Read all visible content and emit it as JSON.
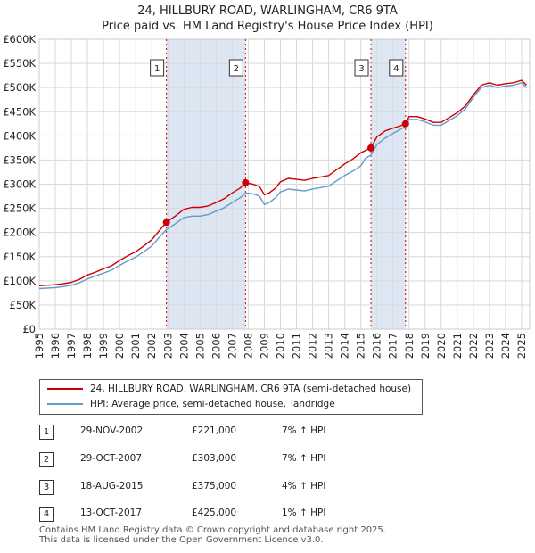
{
  "chart_data": {
    "type": "line",
    "title": "24, HILLBURY ROAD, WARLINGHAM, CR6 9TA",
    "subtitle": "Price paid vs. HM Land Registry's House Price Index (HPI)",
    "xlim": [
      1995,
      2025.5
    ],
    "ylim": [
      0,
      600000
    ],
    "x_ticks": [
      "1995",
      "1996",
      "1997",
      "1998",
      "1999",
      "2000",
      "2001",
      "2002",
      "2003",
      "2004",
      "2005",
      "2006",
      "2007",
      "2008",
      "2009",
      "2010",
      "2011",
      "2012",
      "2013",
      "2014",
      "2015",
      "2016",
      "2017",
      "2018",
      "2019",
      "2020",
      "2021",
      "2022",
      "2023",
      "2024",
      "2025"
    ],
    "y_ticks": [
      {
        "value": 0,
        "label": "£0"
      },
      {
        "value": 50000,
        "label": "£50K"
      },
      {
        "value": 100000,
        "label": "£100K"
      },
      {
        "value": 150000,
        "label": "£150K"
      },
      {
        "value": 200000,
        "label": "£200K"
      },
      {
        "value": 250000,
        "label": "£250K"
      },
      {
        "value": 300000,
        "label": "£300K"
      },
      {
        "value": 350000,
        "label": "£350K"
      },
      {
        "value": 400000,
        "label": "£400K"
      },
      {
        "value": 450000,
        "label": "£450K"
      },
      {
        "value": 500000,
        "label": "£500K"
      },
      {
        "value": 550000,
        "label": "£550K"
      },
      {
        "value": 600000,
        "label": "£600K"
      }
    ],
    "grid": true,
    "series": [
      {
        "name": "24, HILLBURY ROAD, WARLINGHAM, CR6 9TA (semi-detached house)",
        "color": "#cc0000",
        "x": [
          1995.0,
          1995.5,
          1996.0,
          1996.5,
          1997.0,
          1997.5,
          1998.0,
          1998.5,
          1999.0,
          1999.5,
          2000.0,
          2000.5,
          2001.0,
          2001.5,
          2002.0,
          2002.5,
          2002.91,
          2003.5,
          2004.0,
          2004.5,
          2005.0,
          2005.5,
          2006.0,
          2006.5,
          2007.0,
          2007.5,
          2007.83,
          2008.3,
          2008.7,
          2009.0,
          2009.3,
          2009.7,
          2010.0,
          2010.5,
          2011.0,
          2011.5,
          2012.0,
          2012.5,
          2013.0,
          2013.5,
          2014.0,
          2014.5,
          2015.0,
          2015.3,
          2015.63,
          2016.0,
          2016.5,
          2017.0,
          2017.4,
          2017.78,
          2018.0,
          2018.5,
          2019.0,
          2019.5,
          2020.0,
          2020.5,
          2021.0,
          2021.5,
          2022.0,
          2022.5,
          2023.0,
          2023.5,
          2024.0,
          2024.5,
          2025.0,
          2025.3
        ],
        "y": [
          90000,
          91000,
          92000,
          94000,
          97000,
          103000,
          112000,
          118000,
          125000,
          131000,
          142000,
          152000,
          160000,
          172000,
          185000,
          205000,
          221000,
          235000,
          248000,
          252000,
          252000,
          255000,
          262000,
          270000,
          282000,
          292000,
          303000,
          300000,
          295000,
          278000,
          282000,
          292000,
          305000,
          312000,
          310000,
          308000,
          312000,
          315000,
          318000,
          330000,
          342000,
          352000,
          365000,
          370000,
          375000,
          398000,
          410000,
          416000,
          420000,
          425000,
          440000,
          440000,
          435000,
          428000,
          428000,
          438000,
          448000,
          462000,
          485000,
          505000,
          510000,
          505000,
          508000,
          510000,
          515000,
          505000
        ]
      },
      {
        "name": "HPI: Average price, semi-detached house, Tandridge",
        "color": "#6699cc",
        "x": [
          1995.0,
          1995.5,
          1996.0,
          1996.5,
          1997.0,
          1997.5,
          1998.0,
          1998.5,
          1999.0,
          1999.5,
          2000.0,
          2000.5,
          2001.0,
          2001.5,
          2002.0,
          2002.5,
          2002.91,
          2003.5,
          2004.0,
          2004.5,
          2005.0,
          2005.5,
          2006.0,
          2006.5,
          2007.0,
          2007.5,
          2007.83,
          2008.3,
          2008.7,
          2009.0,
          2009.3,
          2009.7,
          2010.0,
          2010.5,
          2011.0,
          2011.5,
          2012.0,
          2012.5,
          2013.0,
          2013.5,
          2014.0,
          2014.5,
          2015.0,
          2015.3,
          2015.63,
          2016.0,
          2016.5,
          2017.0,
          2017.4,
          2017.78,
          2018.0,
          2018.5,
          2019.0,
          2019.5,
          2020.0,
          2020.5,
          2021.0,
          2021.5,
          2022.0,
          2022.5,
          2023.0,
          2023.5,
          2024.0,
          2024.5,
          2025.0,
          2025.3
        ],
        "y": [
          84000,
          85000,
          86000,
          88000,
          91000,
          96000,
          104000,
          110000,
          116000,
          122000,
          132000,
          141000,
          149000,
          160000,
          172000,
          191000,
          206000,
          219000,
          231000,
          234000,
          234000,
          237000,
          244000,
          251000,
          262000,
          272000,
          282000,
          280000,
          275000,
          258000,
          262000,
          272000,
          284000,
          290000,
          288000,
          286000,
          290000,
          293000,
          296000,
          307000,
          318000,
          327000,
          338000,
          354000,
          360000,
          382000,
          395000,
          405000,
          412000,
          420000,
          434000,
          434000,
          429000,
          422000,
          422000,
          432000,
          442000,
          456000,
          480000,
          500000,
          505000,
          500000,
          503000,
          505000,
          510000,
          500000
        ]
      }
    ],
    "sales": [
      {
        "label": "1",
        "x": 2002.91,
        "y": 221000
      },
      {
        "label": "2",
        "x": 2007.83,
        "y": 303000
      },
      {
        "label": "3",
        "x": 2015.63,
        "y": 375000
      },
      {
        "label": "4",
        "x": 2017.78,
        "y": 425000
      }
    ],
    "shaded_spans": [
      [
        2002.91,
        2007.83
      ],
      [
        2015.63,
        2017.78
      ]
    ]
  },
  "legend": {
    "property": "24, HILLBURY ROAD, WARLINGHAM, CR6 9TA (semi-detached house)",
    "hpi": "HPI: Average price, semi-detached house, Tandridge",
    "property_color": "#cc0000",
    "hpi_color": "#6699cc"
  },
  "transactions": [
    {
      "num": "1",
      "date": "29-NOV-2002",
      "price": "£221,000",
      "hpi": "7% ↑ HPI"
    },
    {
      "num": "2",
      "date": "29-OCT-2007",
      "price": "£303,000",
      "hpi": "7% ↑ HPI"
    },
    {
      "num": "3",
      "date": "18-AUG-2015",
      "price": "£375,000",
      "hpi": "4% ↑ HPI"
    },
    {
      "num": "4",
      "date": "13-OCT-2017",
      "price": "£425,000",
      "hpi": "1% ↑ HPI"
    }
  ],
  "footer": {
    "line1": "Contains HM Land Registry data © Crown copyright and database right 2025.",
    "line2": "This data is licensed under the Open Government Licence v3.0."
  }
}
